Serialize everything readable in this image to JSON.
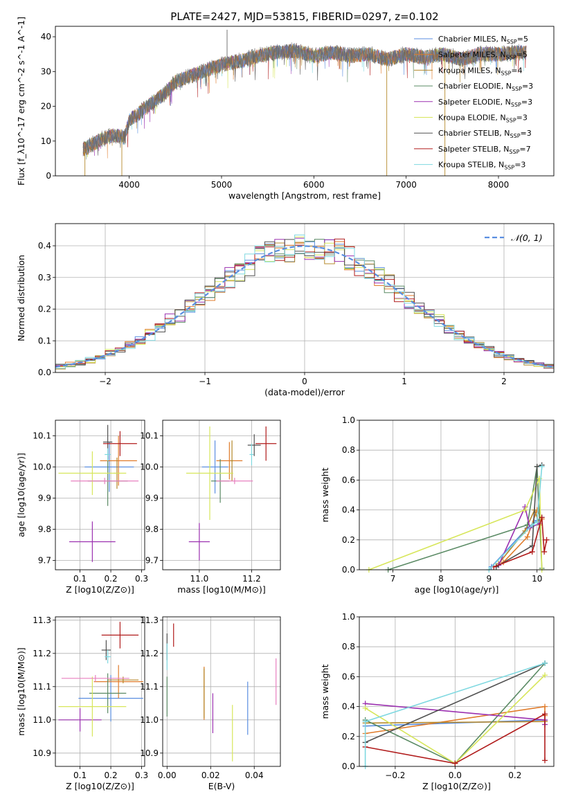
{
  "figure_title": "PLATE=2427, MJD=53815, FIBERID=0297, z=0.102",
  "colors": {
    "Chabrier MILES": "#5a8ee0",
    "Salpeter MILES": "#e07b2a",
    "Kroupa MILES": "#b5882b",
    "Chabrier ELODIE": "#5a8a64",
    "Salpeter ELODIE": "#9b30b0",
    "Kroupa ELODIE": "#d7e65a",
    "Chabrier STELIB": "#505050",
    "Salpeter STELIB": "#b01a1a",
    "Kroupa STELIB": "#7ed8e0",
    "pink": "#e87fbf",
    "gaussian": "#5a8ee0"
  },
  "chart_data": [
    {
      "id": "spectrum",
      "type": "line",
      "xlabel": "wavelength [Angstrom, rest frame]",
      "ylabel": "Flux [f_λ10^-17 erg cm^-2 s^-1 A^-1]",
      "xlim": [
        3200,
        8600
      ],
      "ylim": [
        0,
        43
      ],
      "xticks": [
        4000,
        5000,
        6000,
        7000,
        8000
      ],
      "yticks": [
        0,
        10,
        20,
        30,
        40
      ],
      "legend_placement": "upper right",
      "legend": [
        {
          "name": "Chabrier MILES, N",
          "sub": "SSP",
          "suffix": "=5",
          "color": "#5a8ee0"
        },
        {
          "name": "Salpeter MILES, N",
          "sub": "SSP",
          "suffix": "=5",
          "color": "#e07b2a"
        },
        {
          "name": "Kroupa MILES, N",
          "sub": "SSP",
          "suffix": "=4",
          "color": "#b5882b"
        },
        {
          "name": "Chabrier ELODIE, N",
          "sub": "SSP",
          "suffix": "=3",
          "color": "#5a8a64"
        },
        {
          "name": "Salpeter ELODIE, N",
          "sub": "SSP",
          "suffix": "=3",
          "color": "#9b30b0"
        },
        {
          "name": "Kroupa ELODIE, N",
          "sub": "SSP",
          "suffix": "=3",
          "color": "#d7e65a"
        },
        {
          "name": "Chabrier STELIB, N",
          "sub": "SSP",
          "suffix": "=3",
          "color": "#505050"
        },
        {
          "name": "Salpeter STELIB, N",
          "sub": "SSP",
          "suffix": "=7",
          "color": "#b01a1a"
        },
        {
          "name": "Kroupa STELIB, N",
          "sub": "SSP",
          "suffix": "=3",
          "color": "#7ed8e0"
        }
      ],
      "continuum": [
        [
          3500,
          7.5
        ],
        [
          3600,
          9
        ],
        [
          3700,
          10.5
        ],
        [
          3800,
          11.5
        ],
        [
          3900,
          11.5
        ],
        [
          3950,
          11
        ],
        [
          4000,
          16
        ],
        [
          4100,
          18
        ],
        [
          4200,
          20
        ],
        [
          4300,
          22
        ],
        [
          4400,
          24
        ],
        [
          4500,
          27
        ],
        [
          4600,
          28
        ],
        [
          4800,
          30
        ],
        [
          5000,
          32
        ],
        [
          5100,
          32.5
        ],
        [
          5200,
          33
        ],
        [
          5400,
          34.5
        ],
        [
          5600,
          35.5
        ],
        [
          5800,
          36
        ],
        [
          6000,
          34.5
        ],
        [
          6200,
          35.5
        ],
        [
          6400,
          34.5
        ],
        [
          6600,
          35
        ],
        [
          6800,
          33.5
        ],
        [
          7000,
          35
        ],
        [
          7200,
          34
        ],
        [
          7400,
          35
        ],
        [
          7600,
          33.5
        ],
        [
          7800,
          35
        ],
        [
          8000,
          35
        ],
        [
          8200,
          35.5
        ],
        [
          8300,
          35.5
        ]
      ],
      "spikes": [
        [
          5060,
          42
        ],
        [
          6790,
          0
        ],
        [
          7420,
          0
        ],
        [
          3920,
          0
        ],
        [
          3520,
          0
        ]
      ]
    },
    {
      "id": "residuals",
      "type": "bar",
      "xlabel": "(data-model)/error",
      "ylabel": "Normed distribution",
      "xlim": [
        -2.5,
        2.5
      ],
      "ylim": [
        0,
        0.47
      ],
      "xticks": [
        -2,
        -1,
        0,
        1,
        2
      ],
      "yticks": [
        0.0,
        0.1,
        0.2,
        0.3,
        0.4
      ],
      "legend_label": "𝒩(0, 1)",
      "bin_width": 0.1
    },
    {
      "id": "age_vs_Z",
      "type": "scatter",
      "xlabel": "Z [log10(Z/Z⊙)]",
      "ylabel": "age  [log10(age/yr)]",
      "xlim": [
        0.02,
        0.31
      ],
      "ylim": [
        9.67,
        10.15
      ],
      "xticks": [
        0.1,
        0.2,
        0.3
      ],
      "yticks": [
        9.7,
        9.8,
        9.9,
        10.0,
        10.1
      ],
      "points": [
        {
          "series": "Chabrier MILES",
          "x": 0.195,
          "y": 10.0,
          "xerr": 0.08,
          "yerr": 0.08
        },
        {
          "series": "Salpeter MILES",
          "x": 0.225,
          "y": 10.02,
          "xerr": 0.06,
          "yerr": 0.08
        },
        {
          "series": "Kroupa MILES",
          "x": 0.22,
          "y": 9.98,
          "xerr": 0.01,
          "yerr": 0.05
        },
        {
          "series": "Chabrier ELODIE",
          "x": 0.19,
          "y": 9.955,
          "xerr": 0.065,
          "yerr": 0.08
        },
        {
          "series": "Salpeter ELODIE",
          "x": 0.14,
          "y": 9.76,
          "xerr": 0.075,
          "yerr": 0.065
        },
        {
          "series": "Kroupa ELODIE",
          "x": 0.14,
          "y": 9.98,
          "xerr": 0.11,
          "yerr": 0.07
        },
        {
          "series": "Chabrier STELIB",
          "x": 0.19,
          "y": 10.08,
          "xerr": 0.015,
          "yerr": 0.055
        },
        {
          "series": "Salpeter STELIB",
          "x": 0.23,
          "y": 10.075,
          "xerr": 0.055,
          "yerr": 0.04
        },
        {
          "series": "Kroupa STELIB",
          "x": 0.19,
          "y": 10.04,
          "xerr": 0.01,
          "yerr": 0.02
        },
        {
          "series": "pink",
          "x": 0.18,
          "y": 9.955,
          "xerr": 0.11,
          "yerr": 0.01
        }
      ]
    },
    {
      "id": "age_vs_mass",
      "type": "scatter",
      "xlabel": "mass [log10(M/M⊙)]",
      "ylabel": "",
      "xlim": [
        10.86,
        11.31
      ],
      "ylim": [
        9.67,
        10.15
      ],
      "xticks": [
        11.0,
        11.2
      ],
      "yticks": [
        9.7,
        9.8,
        9.9,
        10.0,
        10.1
      ],
      "points": [
        {
          "series": "Chabrier MILES",
          "x": 11.06,
          "y": 10.0,
          "xerr": 0.05,
          "yerr": 0.085
        },
        {
          "series": "Salpeter MILES",
          "x": 11.115,
          "y": 10.02,
          "xerr": 0.05,
          "yerr": 0.06
        },
        {
          "series": "Kroupa MILES",
          "x": 11.125,
          "y": 10.02,
          "xerr": 0.005,
          "yerr": 0.065
        },
        {
          "series": "Chabrier ELODIE",
          "x": 11.08,
          "y": 9.955,
          "xerr": 0.035,
          "yerr": 0.07
        },
        {
          "series": "Salpeter ELODIE",
          "x": 11.0,
          "y": 9.76,
          "xerr": 0.04,
          "yerr": 0.06
        },
        {
          "series": "Kroupa ELODIE",
          "x": 11.04,
          "y": 9.98,
          "xerr": 0.09,
          "yerr": 0.15
        },
        {
          "series": "Chabrier STELIB",
          "x": 11.21,
          "y": 10.07,
          "xerr": 0.025,
          "yerr": 0.035
        },
        {
          "series": "Salpeter STELIB",
          "x": 11.255,
          "y": 10.075,
          "xerr": 0.04,
          "yerr": 0.055
        },
        {
          "series": "Kroupa STELIB",
          "x": 11.2,
          "y": 10.04,
          "xerr": 0.008,
          "yerr": 0.035
        },
        {
          "series": "pink",
          "x": 11.135,
          "y": 9.955,
          "xerr": 0.07,
          "yerr": 0.01
        }
      ]
    },
    {
      "id": "mass_weight_vs_age",
      "type": "line",
      "xlabel": "age  [log10(age/yr)]",
      "ylabel": "mass weight",
      "xlim": [
        6.3,
        10.35
      ],
      "ylim": [
        0.0,
        1.0
      ],
      "xticks": [
        7,
        8,
        9,
        10
      ],
      "yticks": [
        0.0,
        0.2,
        0.4,
        0.6,
        0.8,
        1.0
      ],
      "series": [
        {
          "name": "Chabrier MILES",
          "points": [
            [
              9.05,
              0.02
            ],
            [
              9.8,
              0.28
            ],
            [
              10.0,
              0.33
            ],
            [
              10.1,
              0.35
            ]
          ]
        },
        {
          "name": "Salpeter MILES",
          "points": [
            [
              9.3,
              0.05
            ],
            [
              9.8,
              0.22
            ],
            [
              10.0,
              0.4
            ],
            [
              10.1,
              0.34
            ]
          ]
        },
        {
          "name": "Kroupa MILES",
          "points": [
            [
              9.2,
              0.04
            ],
            [
              9.75,
              0.26
            ],
            [
              9.95,
              0.4
            ],
            [
              10.05,
              0.3
            ]
          ]
        },
        {
          "name": "Chabrier ELODIE",
          "points": [
            [
              6.9,
              0.0
            ],
            [
              9.8,
              0.3
            ],
            [
              10.0,
              0.69
            ],
            [
              10.1,
              0.01
            ]
          ]
        },
        {
          "name": "Salpeter ELODIE",
          "points": [
            [
              9.2,
              0.03
            ],
            [
              9.75,
              0.42
            ],
            [
              9.85,
              0.28
            ],
            [
              10.05,
              0.31
            ]
          ]
        },
        {
          "name": "Kroupa ELODIE",
          "points": [
            [
              6.5,
              0.0
            ],
            [
              9.75,
              0.4
            ],
            [
              10.05,
              0.61
            ],
            [
              10.1,
              0.0
            ]
          ]
        },
        {
          "name": "Chabrier STELIB",
          "points": [
            [
              9.15,
              0.02
            ],
            [
              9.9,
              0.16
            ],
            [
              10.0,
              0.69
            ],
            [
              10.1,
              0.7
            ]
          ]
        },
        {
          "name": "Salpeter STELIB",
          "points": [
            [
              9.1,
              0.02
            ],
            [
              9.9,
              0.12
            ],
            [
              10.1,
              0.35
            ],
            [
              10.15,
              0.12
            ],
            [
              10.2,
              0.2
            ]
          ]
        },
        {
          "name": "Kroupa STELIB",
          "points": [
            [
              9.0,
              0.0
            ],
            [
              9.9,
              0.3
            ],
            [
              10.0,
              0.32
            ],
            [
              10.1,
              0.69
            ]
          ]
        }
      ]
    },
    {
      "id": "mass_vs_Z",
      "type": "scatter",
      "xlabel": "Z [log10(Z/Z⊙)]",
      "ylabel": "mass [log10(M/M⊙)]",
      "xlim": [
        0.02,
        0.31
      ],
      "ylim": [
        10.86,
        11.31
      ],
      "xticks": [
        0.1,
        0.2,
        0.3
      ],
      "yticks": [
        10.9,
        11.0,
        11.1,
        11.2,
        11.3
      ],
      "points": [
        {
          "series": "Chabrier MILES",
          "x": 0.2,
          "y": 11.065,
          "xerr": 0.105,
          "yerr": 0.07
        },
        {
          "series": "Salpeter MILES",
          "x": 0.225,
          "y": 11.115,
          "xerr": 0.08,
          "yerr": 0.05
        },
        {
          "series": "Kroupa MILES",
          "x": 0.24,
          "y": 11.12,
          "xerr": 0.05,
          "yerr": 0.01
        },
        {
          "series": "Chabrier ELODIE",
          "x": 0.19,
          "y": 11.08,
          "xerr": 0.06,
          "yerr": 0.06
        },
        {
          "series": "Salpeter ELODIE",
          "x": 0.1,
          "y": 11.0,
          "xerr": 0.07,
          "yerr": 0.035
        },
        {
          "series": "Kroupa ELODIE",
          "x": 0.14,
          "y": 11.04,
          "xerr": 0.11,
          "yerr": 0.09
        },
        {
          "series": "Chabrier STELIB",
          "x": 0.185,
          "y": 11.21,
          "xerr": 0.015,
          "yerr": 0.03
        },
        {
          "series": "Salpeter STELIB",
          "x": 0.23,
          "y": 11.255,
          "xerr": 0.06,
          "yerr": 0.04
        },
        {
          "series": "Kroupa STELIB",
          "x": 0.19,
          "y": 11.19,
          "xerr": 0.01,
          "yerr": 0.02
        },
        {
          "series": "pink",
          "x": 0.15,
          "y": 11.125,
          "xerr": 0.11,
          "yerr": 0.01
        }
      ]
    },
    {
      "id": "mass_vs_EBV",
      "type": "scatter",
      "xlabel": "E(B-V)",
      "ylabel": "",
      "xlim": [
        -0.002,
        0.052
      ],
      "ylim": [
        10.86,
        11.31
      ],
      "xticks": [
        0.0,
        0.02,
        0.04
      ],
      "yticks": [
        10.9,
        11.0,
        11.1,
        11.2,
        11.3
      ],
      "points": [
        {
          "series": "Chabrier MILES",
          "x": 0.037,
          "y": 11.035,
          "xerr": 0,
          "yerr": 0.08
        },
        {
          "series": "Salpeter MILES",
          "x": 0.017,
          "y": 11.08,
          "xerr": 0,
          "yerr": 0.08
        },
        {
          "series": "Kroupa MILES",
          "x": 0.017,
          "y": 11.08,
          "xerr": 0,
          "yerr": 0.075
        },
        {
          "series": "Chabrier ELODIE",
          "x": 0.0,
          "y": 11.07,
          "xerr": 0,
          "yerr": 0.06
        },
        {
          "series": "Salpeter ELODIE",
          "x": 0.021,
          "y": 11.02,
          "xerr": 0,
          "yerr": 0.06
        },
        {
          "series": "Kroupa ELODIE",
          "x": 0.03,
          "y": 10.96,
          "xerr": 0,
          "yerr": 0.085
        },
        {
          "series": "Chabrier STELIB",
          "x": 0.0,
          "y": 11.22,
          "xerr": 0,
          "yerr": 0.04
        },
        {
          "series": "Salpeter STELIB",
          "x": 0.003,
          "y": 11.255,
          "xerr": 0,
          "yerr": 0.035
        },
        {
          "series": "Kroupa STELIB",
          "x": 0.0,
          "y": 11.19,
          "xerr": 0,
          "yerr": 0.04
        },
        {
          "series": "pink",
          "x": 0.05,
          "y": 11.115,
          "xerr": 0,
          "yerr": 0.07
        }
      ]
    },
    {
      "id": "mass_weight_vs_Z",
      "type": "line",
      "xlabel": "Z [log10(Z/Z⊙)]",
      "ylabel": "mass weight",
      "xlim": [
        -0.32,
        0.33
      ],
      "ylim": [
        0.0,
        1.0
      ],
      "xticks": [
        -0.2,
        0.0,
        0.2
      ],
      "yticks": [
        0.0,
        0.2,
        0.4,
        0.6,
        0.8,
        1.0
      ],
      "series": [
        {
          "name": "Chabrier MILES",
          "points": [
            [
              -0.3,
              0.27
            ],
            [
              0.3,
              0.31
            ],
            [
              0.3,
              0.28
            ]
          ]
        },
        {
          "name": "Salpeter MILES",
          "points": [
            [
              -0.3,
              0.22
            ],
            [
              0.3,
              0.4
            ],
            [
              0.3,
              0.34
            ]
          ]
        },
        {
          "name": "Kroupa MILES",
          "points": [
            [
              -0.3,
              0.29
            ],
            [
              0.3,
              0.3
            ]
          ]
        },
        {
          "name": "Chabrier ELODIE",
          "points": [
            [
              -0.3,
              0.31
            ],
            [
              0.0,
              0.02
            ],
            [
              0.3,
              0.69
            ]
          ]
        },
        {
          "name": "Salpeter ELODIE",
          "points": [
            [
              -0.3,
              0.42
            ],
            [
              0.3,
              0.31
            ],
            [
              0.3,
              0.28
            ]
          ]
        },
        {
          "name": "Kroupa ELODIE",
          "points": [
            [
              -0.3,
              0.39
            ],
            [
              0.0,
              0.02
            ],
            [
              0.3,
              0.61
            ]
          ]
        },
        {
          "name": "Chabrier STELIB",
          "points": [
            [
              -0.3,
              0.16
            ],
            [
              0.3,
              0.69
            ]
          ]
        },
        {
          "name": "Salpeter STELIB",
          "points": [
            [
              -0.3,
              0.13
            ],
            [
              0.0,
              0.02
            ],
            [
              0.3,
              0.35
            ],
            [
              0.3,
              0.04
            ]
          ]
        },
        {
          "name": "Kroupa STELIB",
          "points": [
            [
              -0.3,
              0.0
            ],
            [
              -0.3,
              0.3
            ],
            [
              0.3,
              0.69
            ]
          ]
        }
      ]
    }
  ]
}
